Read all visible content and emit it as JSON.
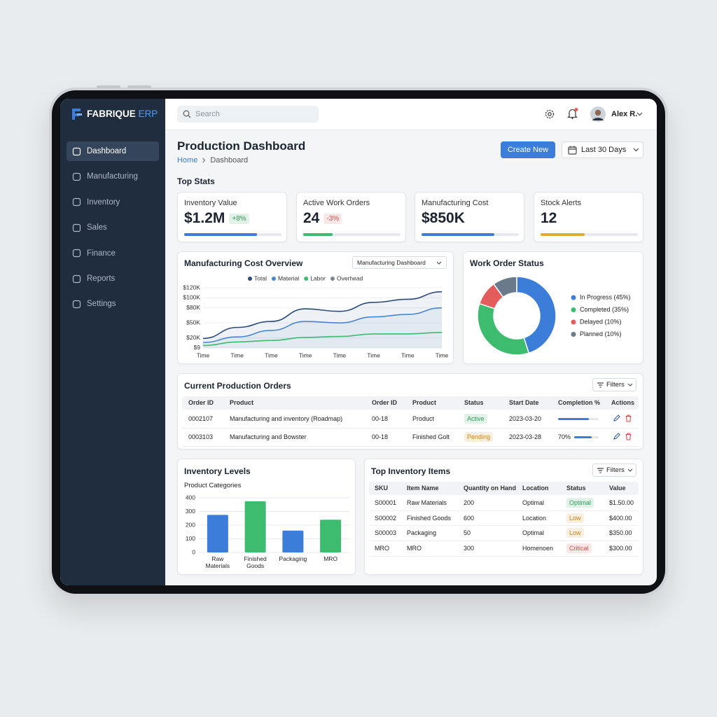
{
  "app": {
    "brand": "FABRIQUE",
    "brand_tag": "ERP",
    "search": "Search",
    "user": "Alex R."
  },
  "nav": {
    "items": [
      "Dashboard",
      "Manufacturing",
      "Inventory",
      "Sales",
      "Finance",
      "Reports",
      "Settings"
    ],
    "active": 0
  },
  "header": {
    "title": "Production Dashboard",
    "breadcrumb": [
      "Home",
      "Dashboard"
    ],
    "create_button": "Create New",
    "date_range": "Last 30 Days"
  },
  "stats": {
    "title": "Top Stats",
    "cards": [
      {
        "label": "Inventory Value",
        "value": "$1.2M",
        "change": "+8%",
        "change_color": "#2e9a57",
        "progress": 75,
        "color": "#3b7dd8"
      },
      {
        "label": "Active Work Orders",
        "value": 24,
        "change": "-3%",
        "change_color": "#d94a4a",
        "progress": 30,
        "color": "#3dbb6e"
      },
      {
        "label": "Manufacturing Cost",
        "value": "$850K",
        "progress": 75,
        "color": "#3b7dd8"
      },
      {
        "label": "Stock Alerts",
        "value": 12,
        "progress": 45,
        "color": "#e3ac2f"
      }
    ]
  },
  "chart_data": [
    {
      "type": "line",
      "title": "Manufacturing Cost Overview",
      "control": "Manufacturing Dashboard",
      "categories": [
        "Time",
        "Time",
        "Time",
        "Time",
        "Time",
        "Time",
        "Time",
        "Time"
      ],
      "series": [
        {
          "name": "Total",
          "color": "#2c4a7a",
          "values": [
            19000,
            41000,
            53000,
            78000,
            73000,
            91000,
            97000,
            112000
          ]
        },
        {
          "name": "Material",
          "color": "#4a86d0",
          "values": [
            11000,
            22000,
            35000,
            53000,
            50000,
            62000,
            67000,
            80000
          ]
        },
        {
          "name": "Labor",
          "color": "#3dbb6e",
          "values": [
            5000,
            12000,
            15000,
            21000,
            23000,
            28000,
            28000,
            31000
          ]
        },
        {
          "name": "Overhead",
          "color": "#7d8794"
        }
      ],
      "ylim": [
        0,
        120000
      ],
      "yticks": [
        {
          "value": 9,
          "label": "$9"
        },
        {
          "value": 20000,
          "label": "$20K"
        },
        {
          "value": 50000,
          "label": "$50K"
        },
        {
          "value": 80000,
          "label": "$80K"
        },
        {
          "value": 100000,
          "label": "$100K"
        },
        {
          "value": 120000,
          "label": "$120K"
        }
      ],
      "grid": true
    },
    {
      "type": "pie",
      "title": "Work Order Status",
      "categories": [
        "In Progress (45%)",
        "Completed (35%)",
        "Delayed (10%)",
        "Planned (10%)"
      ],
      "values": [
        45,
        35,
        10,
        10
      ],
      "colors": [
        "#3b7dd8",
        "#3dbb6e",
        "#e35d5d",
        "#6b7a8a"
      ]
    },
    {
      "type": "bar",
      "title": "Inventory Levels",
      "subtitle": "Product Categories",
      "categories": [
        "Raw Materials",
        "Finished Goods",
        "Packaging",
        "MRO"
      ],
      "values": [
        275,
        375,
        160,
        240
      ],
      "colors": [
        "#3b7dd8",
        "#3dbb6e",
        "#3b7dd8",
        "#3dbb6e"
      ],
      "ylim": [
        0,
        400
      ],
      "yticks": [
        0,
        100,
        200,
        300,
        400
      ],
      "grid": true
    }
  ],
  "production_orders": {
    "title": "Current Production Orders",
    "filter": "Filters",
    "columns": [
      "Order ID",
      "Product",
      "Order ID",
      "Product",
      "Status",
      "Start Date",
      "Completion %",
      "Actions"
    ],
    "rows": [
      {
        "cells": [
          "0002107",
          "Manufacturing and inventory (Roadmap)",
          "00-18",
          "Product"
        ],
        "status": "Active",
        "status_color": "#2e9a57",
        "start_date": "2023-03-20",
        "completion": 75
      },
      {
        "cells": [
          "0003103",
          "Manufacturing and Bowster",
          "00-18",
          "Finished Golt"
        ],
        "status": "Pending",
        "status_color": "#c98416",
        "start_date": "2023-03-28",
        "completion": 70,
        "completion_label": "70%"
      }
    ]
  },
  "inventory_items": {
    "title": "Top Inventory Items",
    "filter": "Filters",
    "columns": [
      "SKU",
      "Item Name",
      "Quantity on Hand",
      "Location",
      "Status",
      "Value"
    ],
    "rows": [
      [
        "S00001",
        "Raw Materials",
        200,
        "Optimal",
        "Optimal",
        "$1.50.00"
      ],
      [
        "S00002",
        "Finished Goods",
        600,
        "Location",
        "Low",
        "$400.00"
      ],
      [
        "S00003",
        "Packaging",
        50,
        "Optimal",
        "Low",
        "$350.00"
      ],
      [
        "MRO",
        "MRO",
        300,
        "Homenoen",
        "Critical",
        "$300.00"
      ]
    ],
    "status_colors": [
      "#2e9a57",
      "#c98416",
      "#c98416",
      "#d94a4a"
    ]
  }
}
